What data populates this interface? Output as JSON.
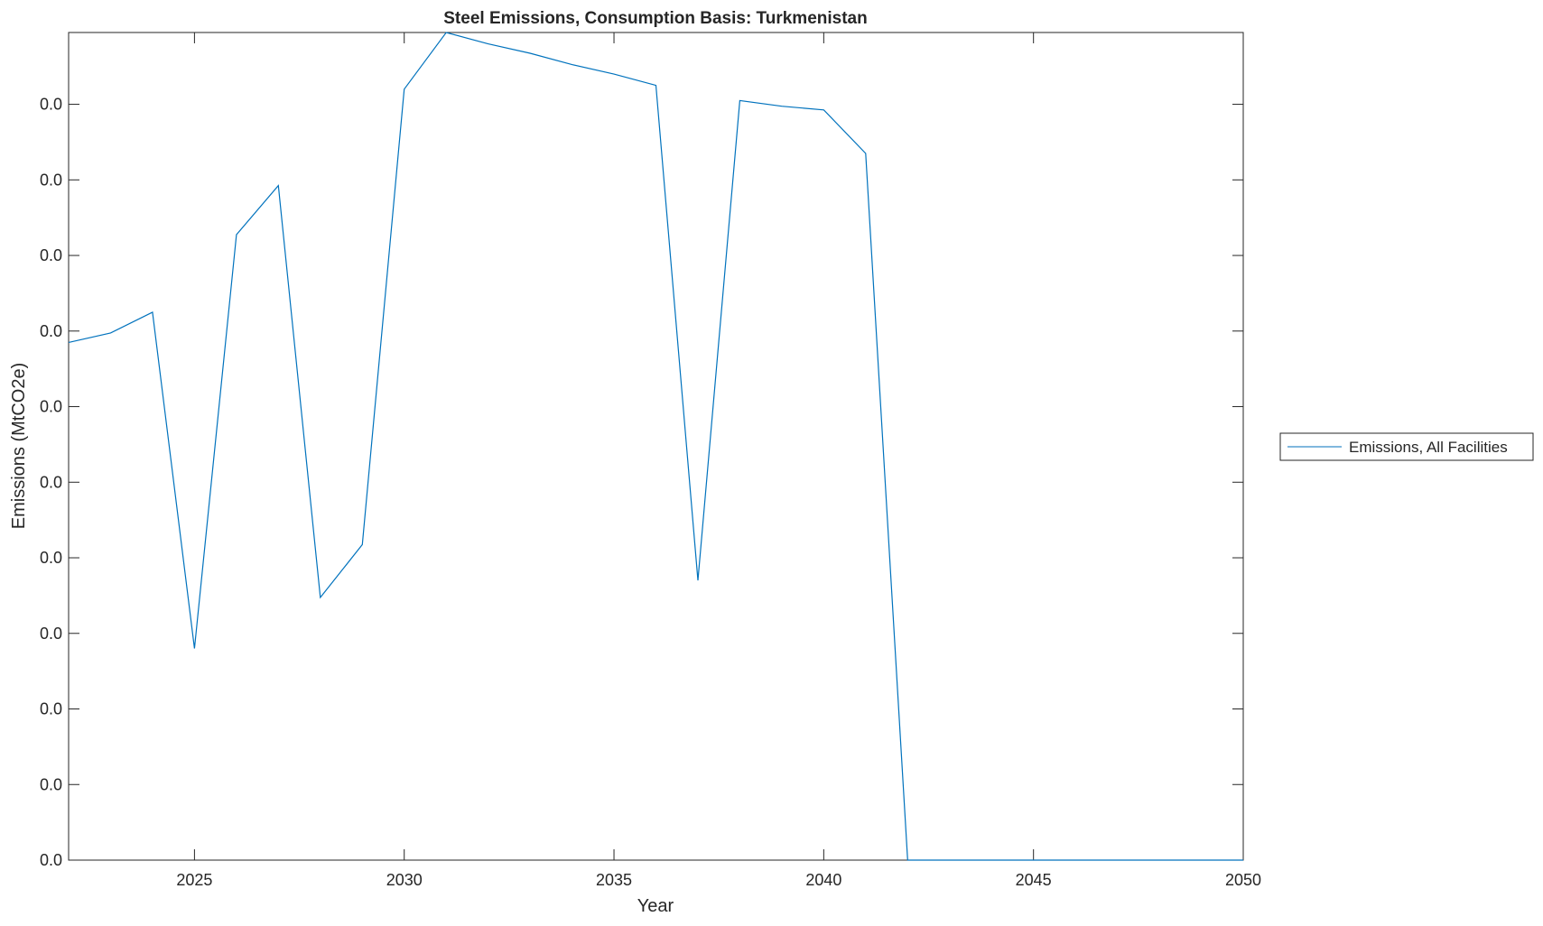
{
  "chart_data": {
    "type": "line",
    "title": "Steel Emissions, Consumption Basis: Turkmenistan",
    "xlabel": "Year",
    "ylabel": "Emissions (MtCO2e)",
    "xlim": [
      2022,
      2050
    ],
    "ylim": [
      0,
      0.0438
    ],
    "x_ticks": [
      2025,
      2030,
      2035,
      2040,
      2045,
      2050
    ],
    "x_tick_labels": [
      "2025",
      "2030",
      "2035",
      "2040",
      "2045",
      "2050"
    ],
    "y_ticks": [
      0,
      0.004,
      0.008,
      0.012,
      0.016,
      0.02,
      0.024,
      0.028,
      0.032,
      0.036,
      0.04
    ],
    "y_tick_labels": [
      "0.0",
      "0.0",
      "0.0",
      "0.0",
      "0.0",
      "0.0",
      "0.0",
      "0.0",
      "0.0",
      "0.0",
      "0.0"
    ],
    "grid": false,
    "legend_placement": "outside-right",
    "series": [
      {
        "name": "Emissions, All Facilities",
        "color": "#0072BD",
        "x": [
          2022,
          2023,
          2024,
          2025,
          2026,
          2027,
          2028,
          2029,
          2030,
          2031,
          2032,
          2033,
          2034,
          2035,
          2036,
          2037,
          2038,
          2039,
          2040,
          2041,
          2042,
          2043,
          2044,
          2045,
          2046,
          2047,
          2048,
          2049,
          2050
        ],
        "y": [
          0.0274,
          0.0279,
          0.029,
          0.0112,
          0.0331,
          0.0357,
          0.0139,
          0.0167,
          0.0408,
          0.0438,
          0.0432,
          0.0427,
          0.0421,
          0.0416,
          0.041,
          0.0148,
          0.0402,
          0.0399,
          0.0397,
          0.0374,
          0,
          0,
          0,
          0,
          0,
          0,
          0,
          0,
          0
        ]
      }
    ]
  }
}
